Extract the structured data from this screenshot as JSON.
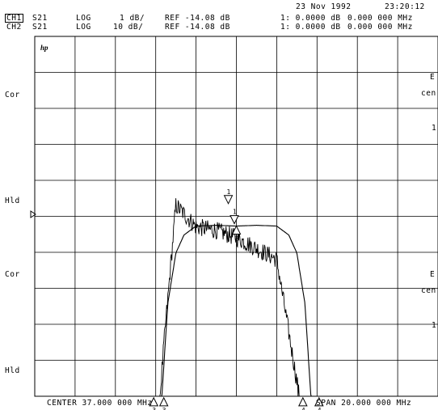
{
  "header": {
    "date": "23 Nov 1992",
    "time": "23:20:12",
    "channels": [
      {
        "name": "CH1",
        "param": "S21",
        "format": "LOG",
        "scale": "1 dB/",
        "ref": "REF -14.08 dB",
        "marker": "1: 0.0000 dB",
        "freq": "0.000 000 MHz"
      },
      {
        "name": "CH2",
        "param": "S21",
        "format": "LOG",
        "scale": "10 dB/",
        "ref": "REF -14.08 dB",
        "marker": "1: 0.0000 dB",
        "freq": "0.000 000 MHz"
      }
    ]
  },
  "side_labels": [
    "Cor",
    "Hld",
    "Cor",
    "Hld"
  ],
  "right_labels": [
    "E",
    "cen",
    "1",
    "E",
    "cen",
    "1"
  ],
  "logo": "hp",
  "footer": {
    "center": "CENTER 37.000 000 MHz",
    "span": "SPAN 20.000 000 MHz"
  },
  "chart_data": {
    "type": "line",
    "x_unit": "MHz",
    "xlim": [
      27,
      47
    ],
    "grid": {
      "x_divisions": 10,
      "y_divisions": 10
    },
    "series": [
      {
        "channel": "CH1",
        "scale_db_per_div": 1,
        "ref_db": -14.08,
        "x": [
          32.9,
          33.2,
          33.6,
          34.0,
          34.4,
          35.0,
          36.0,
          37.0,
          38.0,
          39.0,
          39.6,
          40.0,
          40.4,
          40.8,
          41.1
        ],
        "y": [
          -27.0,
          -20.0,
          -16.5,
          -15.1,
          -14.6,
          -14.35,
          -14.33,
          -14.35,
          -14.33,
          -14.35,
          -14.6,
          -15.1,
          -16.5,
          -20.0,
          -27.0
        ]
      },
      {
        "channel": "CH2",
        "scale_db_per_div": 10,
        "ref_db": -14.08,
        "x": [
          27.0,
          28.0,
          29.0,
          30.0,
          31.0,
          32.0,
          32.5,
          33.0,
          33.4,
          34.0,
          35.0,
          36.0,
          37.0,
          38.0,
          39.0,
          40.0,
          40.6,
          41.0,
          41.6,
          42.0,
          43.0,
          44.0,
          45.0,
          46.0,
          47.0
        ],
        "y": [
          -107,
          -106,
          -107,
          -106,
          -106,
          -104,
          -99,
          -80,
          -50,
          -11,
          -17,
          -18,
          -20,
          -23,
          -26,
          -60,
          -85,
          -101,
          -95,
          -96,
          -98,
          -105,
          -106,
          -107,
          -107
        ]
      }
    ],
    "markers": [
      {
        "channel": "CH1",
        "label": "1",
        "x": 36.9,
        "y": -14.33,
        "dir": "down"
      },
      {
        "channel": "CH1",
        "label": "2",
        "x": 37.0,
        "y": -14.35,
        "dir": "up"
      },
      {
        "channel": "CH2",
        "label": "1",
        "x": 36.6,
        "y": -11.0,
        "dir": "down"
      },
      {
        "channel": "CH2",
        "label": "3",
        "x": 32.9,
        "y": -64.5,
        "dir": "up"
      },
      {
        "channel": "CH2",
        "label": "3",
        "x": 33.4,
        "y": -64.5,
        "dir": "up"
      },
      {
        "channel": "CH2",
        "label": "4",
        "x": 40.3,
        "y": -64.5,
        "dir": "up"
      },
      {
        "channel": "CH2",
        "label": "4",
        "x": 41.1,
        "y": -64.5,
        "dir": "up"
      }
    ]
  }
}
